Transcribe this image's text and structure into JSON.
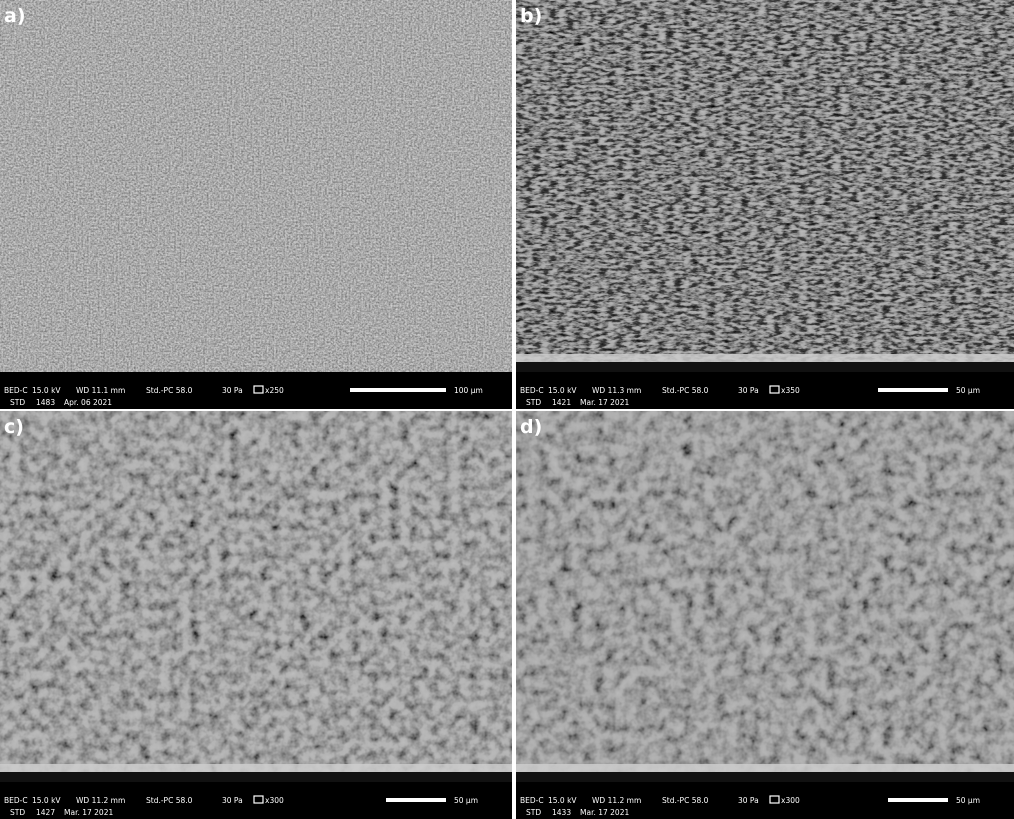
{
  "panels": [
    {
      "label": "a)",
      "detector": "BED-C",
      "voltage": "15.0 kV",
      "wd": "WD 11.1 mm",
      "mode": "Std.-PC 58.0",
      "pressure": "30 Pa",
      "mag": "x250",
      "scale": "100 µm",
      "std": "STD",
      "number": "1483",
      "date": "Apr. 06 2021"
    },
    {
      "label": "b)",
      "detector": "BED-C",
      "voltage": "15.0 kV",
      "wd": "WD 11.3 mm",
      "mode": "Std.-PC 58.0",
      "pressure": "30 Pa",
      "mag": "x350",
      "scale": "50 µm",
      "std": "STD",
      "number": "1421",
      "date": "Mar. 17 2021"
    },
    {
      "label": "c)",
      "detector": "BED-C",
      "voltage": "15.0 kV",
      "wd": "WD 11.2 mm",
      "mode": "Std.-PC 58.0",
      "pressure": "30 Pa",
      "mag": "x300",
      "scale": "50 µm",
      "std": "STD",
      "number": "1427",
      "date": "Mar. 17 2021"
    },
    {
      "label": "d)",
      "detector": "BED-C",
      "voltage": "15.0 kV",
      "wd": "WD 11.2 mm",
      "mode": "Std.-PC 58.0",
      "pressure": "30 Pa",
      "mag": "x300",
      "scale": "50 µm",
      "std": "STD",
      "number": "1433",
      "date": "Mar. 17 2021"
    }
  ]
}
